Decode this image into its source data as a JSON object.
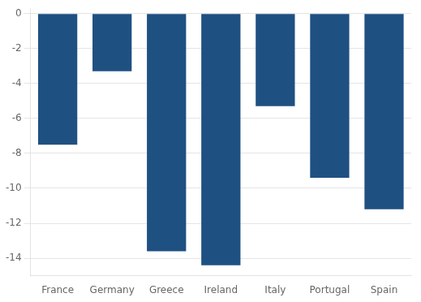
{
  "chart_data": {
    "type": "bar",
    "categories": [
      "France",
      "Germany",
      "Greece",
      "Ireland",
      "Italy",
      "Portugal",
      "Spain"
    ],
    "values": [
      -7.5,
      -3.3,
      -13.6,
      -14.4,
      -5.3,
      -9.4,
      -11.2
    ],
    "color": "#1F5082",
    "ylim": [
      -15.0,
      0.3
    ],
    "yticks": [
      0,
      -2,
      -4,
      -6,
      -8,
      -10,
      -12,
      -14
    ],
    "grid": true
  }
}
